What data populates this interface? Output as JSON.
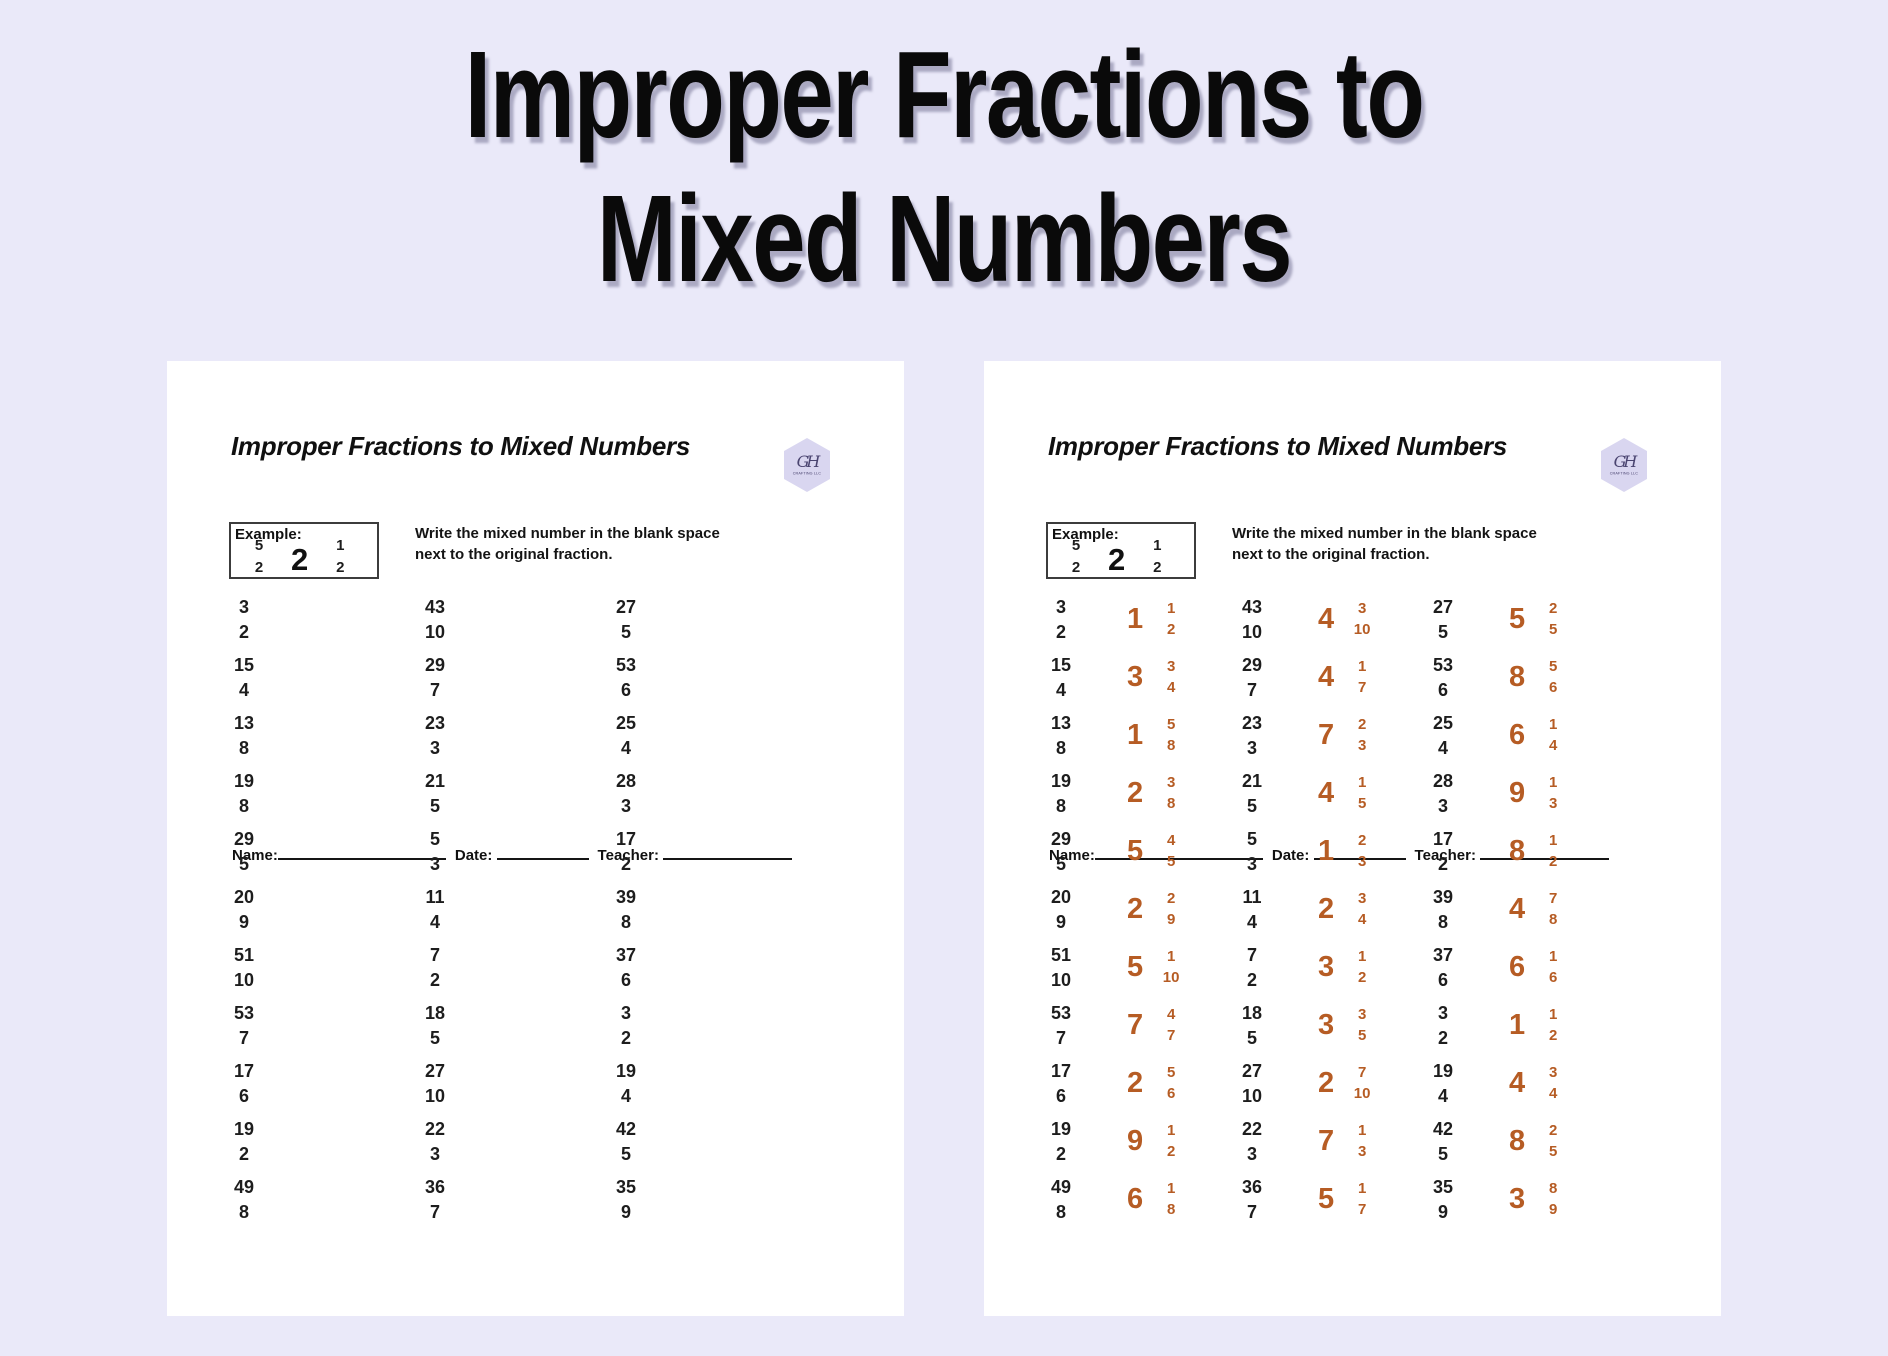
{
  "colors": {
    "background": "#eae9f9",
    "page": "#ffffff",
    "ink": "#1d1d1d",
    "bar": "#3f3f3f",
    "answer": "#b65c24",
    "title": "#0a0a0a",
    "logo_bg": "#d9d6f0",
    "logo_ink": "#4a4470"
  },
  "main_title": {
    "line1": "Improper Fractions to",
    "line2": "Mixed Numbers"
  },
  "worksheet": {
    "title": "Improper Fractions to Mixed Numbers",
    "logo": {
      "monogram": "GH",
      "subtext": "CRAFTING LLC"
    },
    "fields": {
      "name": "Name:",
      "date": "Date:",
      "teacher": "Teacher:"
    },
    "example": {
      "label": "Example:",
      "improper": {
        "num": "5",
        "den": "2"
      },
      "whole": "2",
      "proper": {
        "num": "1",
        "den": "2"
      }
    },
    "instructions": [
      "Write the mixed number in the blank space",
      "next to the original fraction."
    ],
    "problems": [
      [
        {
          "num": "3",
          "den": "2"
        },
        {
          "num": "43",
          "den": "10"
        },
        {
          "num": "27",
          "den": "5"
        }
      ],
      [
        {
          "num": "15",
          "den": "4"
        },
        {
          "num": "29",
          "den": "7"
        },
        {
          "num": "53",
          "den": "6"
        }
      ],
      [
        {
          "num": "13",
          "den": "8"
        },
        {
          "num": "23",
          "den": "3"
        },
        {
          "num": "25",
          "den": "4"
        }
      ],
      [
        {
          "num": "19",
          "den": "8"
        },
        {
          "num": "21",
          "den": "5"
        },
        {
          "num": "28",
          "den": "3"
        }
      ],
      [
        {
          "num": "29",
          "den": "5"
        },
        {
          "num": "5",
          "den": "3"
        },
        {
          "num": "17",
          "den": "2"
        }
      ],
      [
        {
          "num": "20",
          "den": "9"
        },
        {
          "num": "11",
          "den": "4"
        },
        {
          "num": "39",
          "den": "8"
        }
      ],
      [
        {
          "num": "51",
          "den": "10"
        },
        {
          "num": "7",
          "den": "2"
        },
        {
          "num": "37",
          "den": "6"
        }
      ],
      [
        {
          "num": "53",
          "den": "7"
        },
        {
          "num": "18",
          "den": "5"
        },
        {
          "num": "3",
          "den": "2"
        }
      ],
      [
        {
          "num": "17",
          "den": "6"
        },
        {
          "num": "27",
          "den": "10"
        },
        {
          "num": "19",
          "den": "4"
        }
      ],
      [
        {
          "num": "19",
          "den": "2"
        },
        {
          "num": "22",
          "den": "3"
        },
        {
          "num": "42",
          "den": "5"
        }
      ],
      [
        {
          "num": "49",
          "den": "8"
        },
        {
          "num": "36",
          "den": "7"
        },
        {
          "num": "35",
          "den": "9"
        }
      ]
    ],
    "answers": [
      [
        {
          "whole": "1",
          "num": "1",
          "den": "2"
        },
        {
          "whole": "4",
          "num": "3",
          "den": "10"
        },
        {
          "whole": "5",
          "num": "2",
          "den": "5"
        }
      ],
      [
        {
          "whole": "3",
          "num": "3",
          "den": "4"
        },
        {
          "whole": "4",
          "num": "1",
          "den": "7"
        },
        {
          "whole": "8",
          "num": "5",
          "den": "6"
        }
      ],
      [
        {
          "whole": "1",
          "num": "5",
          "den": "8"
        },
        {
          "whole": "7",
          "num": "2",
          "den": "3"
        },
        {
          "whole": "6",
          "num": "1",
          "den": "4"
        }
      ],
      [
        {
          "whole": "2",
          "num": "3",
          "den": "8"
        },
        {
          "whole": "4",
          "num": "1",
          "den": "5"
        },
        {
          "whole": "9",
          "num": "1",
          "den": "3"
        }
      ],
      [
        {
          "whole": "5",
          "num": "4",
          "den": "5"
        },
        {
          "whole": "1",
          "num": "2",
          "den": "3"
        },
        {
          "whole": "8",
          "num": "1",
          "den": "2"
        }
      ],
      [
        {
          "whole": "2",
          "num": "2",
          "den": "9"
        },
        {
          "whole": "2",
          "num": "3",
          "den": "4"
        },
        {
          "whole": "4",
          "num": "7",
          "den": "8"
        }
      ],
      [
        {
          "whole": "5",
          "num": "1",
          "den": "10"
        },
        {
          "whole": "3",
          "num": "1",
          "den": "2"
        },
        {
          "whole": "6",
          "num": "1",
          "den": "6"
        }
      ],
      [
        {
          "whole": "7",
          "num": "4",
          "den": "7"
        },
        {
          "whole": "3",
          "num": "3",
          "den": "5"
        },
        {
          "whole": "1",
          "num": "1",
          "den": "2"
        }
      ],
      [
        {
          "whole": "2",
          "num": "5",
          "den": "6"
        },
        {
          "whole": "2",
          "num": "7",
          "den": "10"
        },
        {
          "whole": "4",
          "num": "3",
          "den": "4"
        }
      ],
      [
        {
          "whole": "9",
          "num": "1",
          "den": "2"
        },
        {
          "whole": "7",
          "num": "1",
          "den": "3"
        },
        {
          "whole": "8",
          "num": "2",
          "den": "5"
        }
      ],
      [
        {
          "whole": "6",
          "num": "1",
          "den": "8"
        },
        {
          "whole": "5",
          "num": "1",
          "den": "7"
        },
        {
          "whole": "3",
          "num": "8",
          "den": "9"
        }
      ]
    ]
  },
  "pages": [
    {
      "id": "blank",
      "show_answers": false
    },
    {
      "id": "answer-key",
      "show_answers": true
    }
  ]
}
